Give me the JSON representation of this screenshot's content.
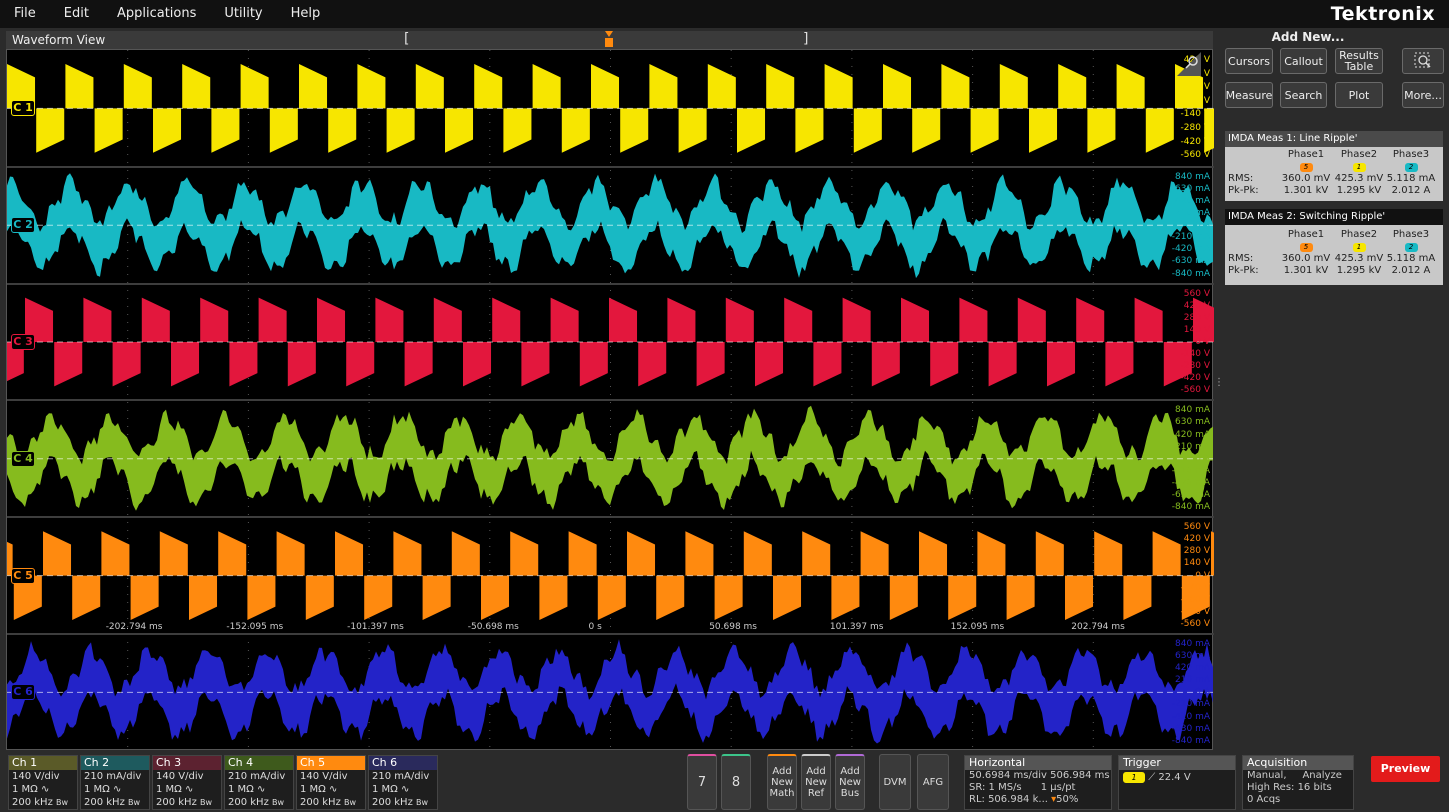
{
  "menu": {
    "file": "File",
    "edit": "Edit",
    "applications": "Applications",
    "utility": "Utility",
    "help": "Help",
    "brand": "Tektronix"
  },
  "waveform_view": {
    "title": "Waveform View",
    "left_bracket": "[",
    "right_bracket": "]",
    "trigger_marker": "T"
  },
  "channels": [
    {
      "badge": "C 1",
      "color": "#f7e600",
      "scale": [
        "420 V",
        "280 V",
        "140 V",
        "0 V",
        "-140 V",
        "-280 V",
        "-420 V",
        "-560 V"
      ]
    },
    {
      "badge": "C 2",
      "color": "#18b9c4",
      "scale": [
        "840 mA",
        "630 mA",
        "420 mA",
        "210 mA",
        "0 A",
        "-210 mA",
        "-420 mA",
        "-630 mA",
        "-840 mA"
      ]
    },
    {
      "badge": "C 3",
      "color": "#e3173d",
      "scale": [
        "560 V",
        "420 V",
        "280 V",
        "140 V",
        "0 V",
        "-140 V",
        "-280 V",
        "-420 V",
        "-560 V"
      ]
    },
    {
      "badge": "C 4",
      "color": "#86bb1e",
      "scale": [
        "840 mA",
        "630 mA",
        "420 mA",
        "210 mA",
        "0 A",
        "-210 mA",
        "-420 mA",
        "-630 mA",
        "-840 mA"
      ]
    },
    {
      "badge": "C 5",
      "color": "#ff8a0f",
      "scale": [
        "560 V",
        "420 V",
        "280 V",
        "140 V",
        "0 V",
        "-140 V",
        "-280 V",
        "-420 V",
        "-560 V"
      ]
    },
    {
      "badge": "C 6",
      "color": "#2323c8",
      "scale": [
        "840 mA",
        "630 mA",
        "420 mA",
        "210 mA",
        "0 A",
        "-210 mA",
        "-420 mA",
        "-630 mA",
        "-840 mA"
      ]
    }
  ],
  "time_axis": [
    "-202.794 ms",
    "-152.095 ms",
    "-101.397 ms",
    "-50.698 ms",
    "0 s",
    "50.698 ms",
    "101.397 ms",
    "152.095 ms",
    "202.794 ms"
  ],
  "add_new": {
    "title": "Add New...",
    "cursors": "Cursors",
    "callout": "Callout",
    "results_table": "Results Table",
    "measure": "Measure",
    "search": "Search",
    "plot": "Plot",
    "more": "More..."
  },
  "meas1": {
    "title_prefix": "IMDA Meas 1:",
    "title_name": "Line Ripple'",
    "phase1": "Phase1",
    "phase2": "Phase2",
    "phase3": "Phase3",
    "chip1": "5",
    "chip2": "1",
    "chip3": "2",
    "rms_label": "RMS:",
    "rms1": "360.0 mV",
    "rms2": "425.3 mV",
    "rms3": "5.118 mA",
    "pk_label": "Pk-Pk:",
    "pk1": "1.301 kV",
    "pk2": "1.295 kV",
    "pk3": "2.012 A"
  },
  "meas2": {
    "title_prefix": "IMDA Meas 2:",
    "title_name": "Switching Ripple'",
    "phase1": "Phase1",
    "phase2": "Phase2",
    "phase3": "Phase3",
    "chip1": "5",
    "chip2": "1",
    "chip3": "2",
    "rms_label": "RMS:",
    "rms1": "360.0 mV",
    "rms2": "425.3 mV",
    "rms3": "5.118 mA",
    "pk_label": "Pk-Pk:",
    "pk1": "1.301 kV",
    "pk2": "1.295 kV",
    "pk3": "2.012 A"
  },
  "ch_tiles": [
    {
      "name": "Ch 1",
      "head_color": "#5a5a28",
      "scale": "140 V/div",
      "imp": "1 MΩ",
      "bw": "200 kHz"
    },
    {
      "name": "Ch 2",
      "head_color": "#1e5a5e",
      "scale": "210 mA/div",
      "imp": "1 MΩ",
      "bw": "200 kHz"
    },
    {
      "name": "Ch 3",
      "head_color": "#5c2230",
      "scale": "140 V/div",
      "imp": "1 MΩ",
      "bw": "200 kHz"
    },
    {
      "name": "Ch 4",
      "head_color": "#3e5a1c",
      "scale": "210 mA/div",
      "imp": "1 MΩ",
      "bw": "200 kHz"
    },
    {
      "name": "Ch 5",
      "head_color": "#ff8a0f",
      "scale": "140 V/div",
      "imp": "1 MΩ",
      "bw": "200 kHz"
    },
    {
      "name": "Ch 6",
      "head_color": "#2a2a5c",
      "scale": "210 mA/div",
      "imp": "1 MΩ",
      "bw": "200 kHz"
    }
  ],
  "bottom_buttons": {
    "b7": "7",
    "b8": "8",
    "add_math": "Add New Math",
    "add_ref": "Add New Ref",
    "add_bus": "Add New Bus",
    "dvm": "DVM",
    "afg": "AFG"
  },
  "horizontal": {
    "title": "Horizontal",
    "line1a": "50.6984 ms/div",
    "line1b": "506.984 ms",
    "line2a": "SR: 1 MS/s",
    "line2b": "1 µs/pt",
    "line3": "RL: 506.984 k...",
    "pct": "50%"
  },
  "trigger": {
    "title": "Trigger",
    "chip": "1",
    "level": "22.4 V"
  },
  "acquisition": {
    "title": "Acquisition",
    "mode": "Manual,",
    "analyze": "Analyze",
    "res": "High Res: 16 bits",
    "acqs": "0 Acqs"
  },
  "preview_label": "Preview"
}
